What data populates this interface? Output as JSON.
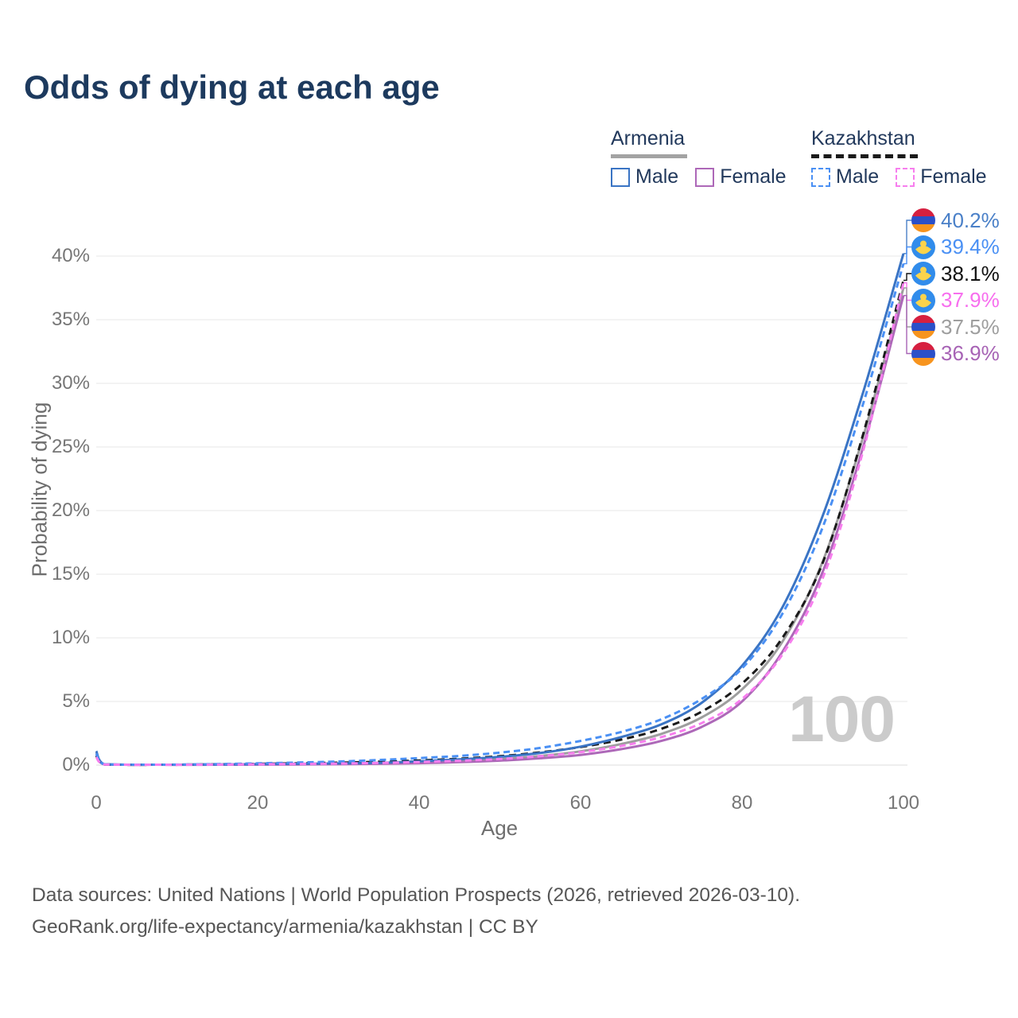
{
  "title": "Odds of dying at each age",
  "legend": {
    "groups": [
      {
        "country": "Armenia",
        "line_style": "solid",
        "underline_color": "#a3a3a3",
        "items": [
          {
            "label": "Male",
            "color": "#3a74c4",
            "dashed": false
          },
          {
            "label": "Female",
            "color": "#ad68b8",
            "dashed": false
          }
        ]
      },
      {
        "country": "Kazakhstan",
        "line_style": "dashed",
        "underline_color": "#1a1a1a",
        "items": [
          {
            "label": "Male",
            "color": "#4a90f4",
            "dashed": true
          },
          {
            "label": "Female",
            "color": "#f77eee",
            "dashed": true
          }
        ]
      }
    ]
  },
  "axes": {
    "x_title": "Age",
    "y_title": "Probability of dying",
    "x_tick_labels": [
      "0",
      "20",
      "40",
      "60",
      "80",
      "100"
    ],
    "y_tick_labels": [
      "0%",
      "5%",
      "10%",
      "15%",
      "20%",
      "25%",
      "30%",
      "35%",
      "40%"
    ]
  },
  "watermark_age": "100",
  "end_labels": [
    {
      "series": "armenia_male",
      "value": "40.2%",
      "color": "#4a80c8",
      "flag": "armenia"
    },
    {
      "series": "kazakhstan_male",
      "value": "39.4%",
      "color": "#4a90f4",
      "flag": "kazakhstan"
    },
    {
      "series": "kazakhstan_overall",
      "value": "38.1%",
      "color": "#111111",
      "flag": "kazakhstan"
    },
    {
      "series": "kazakhstan_female",
      "value": "37.9%",
      "color": "#f76eee",
      "flag": "kazakhstan"
    },
    {
      "series": "armenia_overall",
      "value": "37.5%",
      "color": "#9e9e9e",
      "flag": "armenia"
    },
    {
      "series": "armenia_female",
      "value": "36.9%",
      "color": "#a763b5",
      "flag": "armenia"
    }
  ],
  "chart_data": {
    "type": "line",
    "title": "Odds of dying at each age",
    "xlabel": "Age",
    "ylabel": "Probability of dying",
    "xlim": [
      0,
      100
    ],
    "ylim": [
      0,
      40
    ],
    "y_unit": "%",
    "grid": "horizontal",
    "x_ticks": [
      0,
      20,
      40,
      60,
      80,
      100
    ],
    "y_ticks_pct": [
      0,
      5,
      10,
      15,
      20,
      25,
      30,
      35,
      40
    ],
    "hover_age": 100,
    "ages": [
      0,
      1,
      5,
      10,
      15,
      20,
      25,
      30,
      35,
      40,
      45,
      50,
      55,
      60,
      65,
      70,
      75,
      80,
      85,
      90,
      95,
      100
    ],
    "series": [
      {
        "id": "armenia_male",
        "name": "Armenia Male",
        "country": "Armenia",
        "sex": "Male",
        "color": "#3a74c4",
        "dash": "solid",
        "end_value_pct": 40.2,
        "values": [
          1.1,
          0.07,
          0.03,
          0.03,
          0.05,
          0.08,
          0.1,
          0.13,
          0.18,
          0.3,
          0.45,
          0.65,
          0.95,
          1.45,
          2.2,
          3.2,
          4.9,
          7.8,
          12.4,
          19.6,
          29.3,
          40.2
        ]
      },
      {
        "id": "kazakhstan_male",
        "name": "Kazakhstan Male",
        "country": "Kazakhstan",
        "sex": "Male",
        "color": "#4a90f4",
        "dash": "dashed",
        "end_value_pct": 39.4,
        "values": [
          0.9,
          0.06,
          0.03,
          0.04,
          0.08,
          0.14,
          0.2,
          0.28,
          0.4,
          0.55,
          0.72,
          0.98,
          1.35,
          1.9,
          2.6,
          3.6,
          5.2,
          7.6,
          11.9,
          18.7,
          28.4,
          39.4
        ]
      },
      {
        "id": "kazakhstan_overall",
        "name": "Kazakhstan",
        "country": "Kazakhstan",
        "sex": "Both",
        "color": "#1a1a1a",
        "dash": "dashed",
        "end_value_pct": 38.1,
        "values": [
          0.75,
          0.05,
          0.02,
          0.03,
          0.06,
          0.1,
          0.14,
          0.19,
          0.26,
          0.36,
          0.5,
          0.7,
          1.0,
          1.42,
          2.0,
          2.85,
          4.2,
          6.4,
          10.0,
          15.9,
          26.0,
          38.1
        ]
      },
      {
        "id": "kazakhstan_female",
        "name": "Kazakhstan Female",
        "country": "Kazakhstan",
        "sex": "Female",
        "color": "#f77eee",
        "dash": "dashed",
        "end_value_pct": 37.9,
        "values": [
          0.62,
          0.05,
          0.02,
          0.02,
          0.04,
          0.06,
          0.09,
          0.12,
          0.17,
          0.24,
          0.34,
          0.48,
          0.7,
          1.02,
          1.5,
          2.2,
          3.3,
          5.2,
          8.7,
          14.7,
          24.7,
          37.9
        ]
      },
      {
        "id": "armenia_overall",
        "name": "Armenia",
        "country": "Armenia",
        "sex": "Both",
        "color": "#9e9e9e",
        "dash": "solid",
        "end_value_pct": 37.5,
        "values": [
          0.95,
          0.06,
          0.03,
          0.03,
          0.04,
          0.06,
          0.08,
          0.11,
          0.15,
          0.22,
          0.32,
          0.47,
          0.72,
          1.08,
          1.65,
          2.45,
          3.75,
          5.95,
          9.7,
          16.0,
          25.8,
          37.5
        ]
      },
      {
        "id": "armenia_female",
        "name": "Armenia Female",
        "country": "Armenia",
        "sex": "Female",
        "color": "#ad68b8",
        "dash": "solid",
        "end_value_pct": 36.9,
        "values": [
          0.8,
          0.05,
          0.02,
          0.02,
          0.03,
          0.04,
          0.05,
          0.07,
          0.1,
          0.15,
          0.23,
          0.35,
          0.54,
          0.8,
          1.25,
          1.9,
          3.0,
          5.0,
          8.9,
          15.2,
          25.0,
          36.9
        ]
      }
    ]
  },
  "footer": {
    "line1": "Data sources: United Nations | World Population Prospects (2026, retrieved 2026-03-10).",
    "line2": "GeoRank.org/life-expectancy/armenia/kazakhstan | CC BY"
  }
}
